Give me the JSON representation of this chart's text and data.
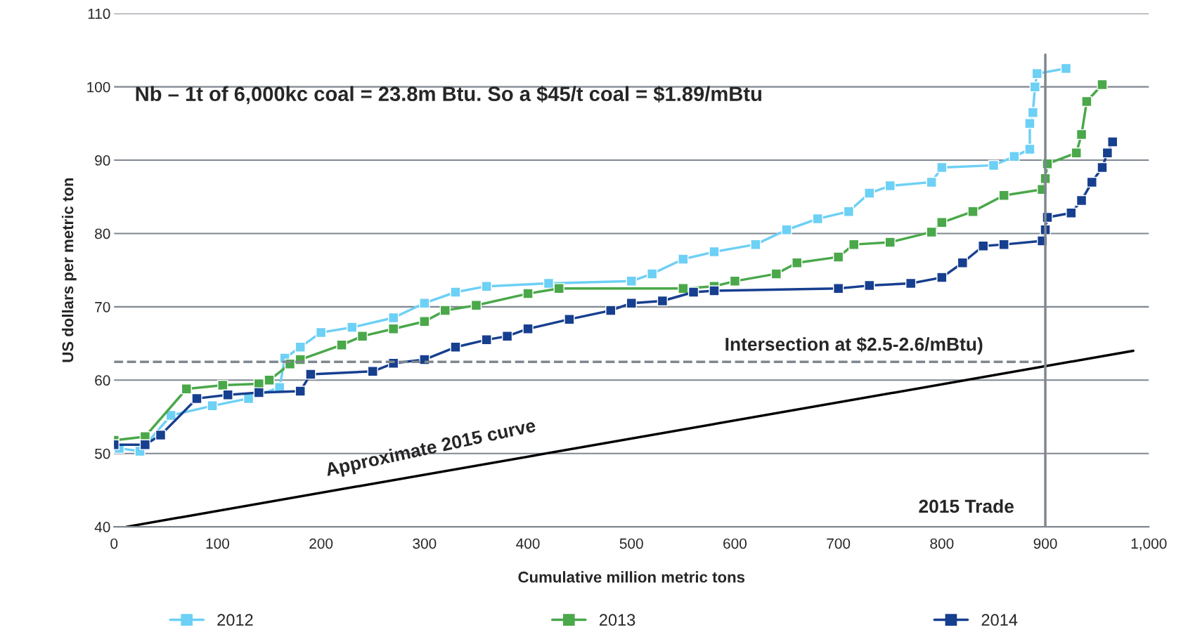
{
  "chart_data": {
    "type": "line",
    "xlabel": "Cumulative million metric tons",
    "ylabel": "US dollars per metric ton",
    "xlim": [
      0,
      1000
    ],
    "xticks": [
      0,
      100,
      200,
      300,
      400,
      500,
      600,
      700,
      800,
      900,
      {
        "value": 1000,
        "label": "1,000"
      }
    ],
    "ylim": [
      40,
      110
    ],
    "yticks": [
      40,
      50,
      60,
      70,
      80,
      90,
      100,
      110
    ],
    "grid": "y",
    "legend": "bottom",
    "marker": "square",
    "line_style": "solid",
    "annotations": [
      "Nb – 1t of 6,000kc coal = 23.8m Btu. So a $45/t coal = $1.89/mBtu"
    ],
    "ref_lines": [
      {
        "axis": "y",
        "value": 62.5,
        "label": "Intersection at $2.5-2.6/mBtu)",
        "color": "#7f8790",
        "line_style": "dashed"
      },
      {
        "axis": "x",
        "value": 900,
        "label": "2015 Trade",
        "color": "#7f8790",
        "line_style": "solid"
      }
    ],
    "series": [
      {
        "name": "2012",
        "color": "#6dd0f5",
        "x": [
          5,
          25,
          55,
          95,
          130,
          160,
          165,
          180,
          200,
          230,
          270,
          300,
          330,
          360,
          420,
          500,
          520,
          550,
          580,
          620,
          650,
          680,
          710,
          730,
          750,
          790,
          800,
          850,
          870,
          885,
          885,
          888,
          890,
          892,
          920
        ],
        "values": [
          50.7,
          50.3,
          55.2,
          56.5,
          57.5,
          59,
          63,
          64.5,
          66.5,
          67.2,
          68.5,
          70.5,
          72,
          72.8,
          73.2,
          73.5,
          74.5,
          76.5,
          77.5,
          78.5,
          80.5,
          82,
          83,
          85.5,
          86.5,
          87,
          89,
          89.3,
          90.5,
          91.5,
          95,
          96.5,
          100,
          101.8,
          102.5
        ]
      },
      {
        "name": "2013",
        "color": "#4aa84a",
        "x": [
          0,
          30,
          70,
          105,
          140,
          150,
          170,
          180,
          220,
          240,
          270,
          300,
          320,
          350,
          400,
          430,
          550,
          580,
          600,
          640,
          660,
          700,
          715,
          750,
          790,
          800,
          830,
          860,
          897,
          900,
          902,
          930,
          935,
          940,
          955
        ],
        "values": [
          51.8,
          52.3,
          58.8,
          59.3,
          59.5,
          60,
          62.2,
          62.8,
          64.8,
          66,
          67,
          68,
          69.5,
          70.2,
          71.8,
          72.5,
          72.5,
          72.8,
          73.5,
          74.5,
          76,
          76.8,
          78.5,
          78.8,
          80.2,
          81.5,
          83,
          85.2,
          86,
          87.5,
          89.5,
          91,
          93.5,
          98,
          100.3
        ]
      },
      {
        "name": "2014",
        "color": "#173f8f",
        "x": [
          0,
          30,
          45,
          80,
          110,
          140,
          180,
          190,
          250,
          270,
          300,
          330,
          360,
          380,
          400,
          440,
          480,
          500,
          530,
          560,
          580,
          700,
          730,
          770,
          800,
          820,
          840,
          860,
          897,
          900,
          902,
          925,
          935,
          945,
          955,
          960,
          965
        ],
        "values": [
          51.2,
          51.2,
          52.5,
          57.5,
          58,
          58.3,
          58.5,
          60.8,
          61.2,
          62.3,
          62.8,
          64.5,
          65.5,
          66,
          67,
          68.3,
          69.5,
          70.5,
          70.8,
          72,
          72.2,
          72.5,
          72.9,
          73.2,
          74,
          76,
          78.3,
          78.5,
          79,
          80.5,
          82.2,
          82.8,
          84.5,
          87,
          89,
          91,
          92.5
        ]
      },
      {
        "name": "Approximate 2015 curve",
        "color": "#000000",
        "marker": "none",
        "x": [
          12,
          985
        ],
        "values": [
          40,
          64
        ]
      }
    ]
  }
}
